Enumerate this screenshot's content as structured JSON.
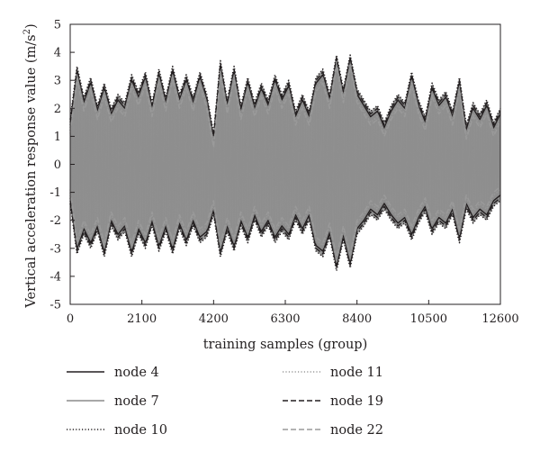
{
  "chart_data": {
    "type": "line",
    "title": "",
    "xlabel": "training samples (group)",
    "ylabel_main": "Vertical acceleration response value (m/s",
    "ylabel_sup": "2",
    "ylabel_close": ")",
    "xlim": [
      0,
      12600
    ],
    "ylim": [
      -5,
      5
    ],
    "x_ticks": [
      0,
      2100,
      4200,
      6300,
      8400,
      10500,
      12600
    ],
    "y_ticks": [
      -5,
      -4,
      -3,
      -2,
      -1,
      0,
      1,
      2,
      3,
      4,
      5
    ],
    "grid": false,
    "legend_position": "bottom, two columns",
    "band_color": "#9a9a9a",
    "envelope_sample_x": [
      0,
      200,
      400,
      600,
      800,
      1000,
      1200,
      1400,
      1600,
      1800,
      2000,
      2200,
      2400,
      2600,
      2800,
      3000,
      3200,
      3400,
      3600,
      3800,
      4000,
      4200,
      4400,
      4600,
      4800,
      5000,
      5200,
      5400,
      5600,
      5800,
      6000,
      6200,
      6400,
      6600,
      6800,
      7000,
      7200,
      7400,
      7600,
      7800,
      8000,
      8200,
      8400,
      8600,
      8800,
      9000,
      9200,
      9400,
      9600,
      9800,
      10000,
      10200,
      10400,
      10600,
      10800,
      11000,
      11200,
      11400,
      11600,
      11800,
      12000,
      12200,
      12400,
      12600
    ],
    "series": [
      {
        "name": "node 4",
        "color": "#231f20",
        "dash": "solid",
        "width": 1.4,
        "upper": [
          1.4,
          3.3,
          2.2,
          2.9,
          1.9,
          2.7,
          1.8,
          2.3,
          2.0,
          3.0,
          2.4,
          3.1,
          2.0,
          3.2,
          2.2,
          3.3,
          2.3,
          3.0,
          2.2,
          3.1,
          2.3,
          0.9,
          3.5,
          2.1,
          3.3,
          1.9,
          2.9,
          2.0,
          2.7,
          2.1,
          3.0,
          2.3,
          2.8,
          1.7,
          2.3,
          1.7,
          2.9,
          3.2,
          2.3,
          3.8,
          2.5,
          3.8,
          2.5,
          2.1,
          1.7,
          1.9,
          1.3,
          1.9,
          2.3,
          2.0,
          3.1,
          2.1,
          1.5,
          2.7,
          2.1,
          2.4,
          1.7,
          2.9,
          1.2,
          2.0,
          1.6,
          2.1,
          1.3,
          1.8
        ],
        "lower": [
          -1.2,
          -3.0,
          -2.3,
          -2.8,
          -2.2,
          -3.1,
          -2.0,
          -2.5,
          -2.2,
          -3.1,
          -2.3,
          -2.8,
          -2.0,
          -2.9,
          -2.2,
          -3.0,
          -2.1,
          -2.7,
          -2.0,
          -2.6,
          -2.4,
          -1.6,
          -3.1,
          -2.2,
          -2.9,
          -2.0,
          -2.6,
          -1.8,
          -2.4,
          -2.0,
          -2.6,
          -2.2,
          -2.5,
          -1.8,
          -2.3,
          -1.8,
          -2.9,
          -3.1,
          -2.4,
          -3.6,
          -2.5,
          -3.5,
          -2.3,
          -2.0,
          -1.6,
          -1.8,
          -1.4,
          -1.8,
          -2.1,
          -1.9,
          -2.5,
          -1.9,
          -1.5,
          -2.3,
          -1.9,
          -2.1,
          -1.6,
          -2.6,
          -1.4,
          -1.9,
          -1.6,
          -1.8,
          -1.3,
          -1.1
        ]
      },
      {
        "name": "node 7",
        "color": "#8c8c8c",
        "dash": "solid",
        "width": 1.4,
        "upper": [
          1.3,
          3.2,
          2.1,
          2.8,
          1.8,
          2.6,
          1.7,
          2.2,
          1.9,
          2.9,
          2.3,
          3.0,
          1.9,
          3.1,
          2.1,
          3.2,
          2.2,
          2.9,
          2.1,
          3.0,
          2.2,
          0.8,
          3.4,
          2.0,
          3.2,
          1.8,
          2.8,
          1.9,
          2.6,
          2.0,
          2.9,
          2.2,
          2.7,
          1.6,
          2.2,
          1.6,
          2.8,
          3.1,
          2.2,
          3.7,
          2.4,
          3.7,
          2.4,
          2.0,
          1.6,
          1.8,
          1.2,
          1.8,
          2.2,
          1.9,
          3.0,
          2.0,
          1.4,
          2.6,
          2.0,
          2.3,
          1.6,
          2.8,
          1.1,
          1.9,
          1.5,
          2.0,
          1.2,
          1.7
        ],
        "lower": [
          -1.1,
          -2.9,
          -2.2,
          -2.7,
          -2.1,
          -3.0,
          -1.9,
          -2.4,
          -2.1,
          -3.0,
          -2.2,
          -2.7,
          -1.9,
          -2.8,
          -2.1,
          -2.9,
          -2.0,
          -2.6,
          -1.9,
          -2.5,
          -2.3,
          -1.5,
          -3.0,
          -2.1,
          -2.8,
          -1.9,
          -2.5,
          -1.7,
          -2.3,
          -1.9,
          -2.5,
          -2.1,
          -2.4,
          -1.7,
          -2.2,
          -1.7,
          -2.8,
          -3.0,
          -2.3,
          -3.5,
          -2.4,
          -3.4,
          -2.2,
          -1.9,
          -1.5,
          -1.7,
          -1.3,
          -1.7,
          -2.0,
          -1.8,
          -2.4,
          -1.8,
          -1.4,
          -2.2,
          -1.8,
          -2.0,
          -1.5,
          -2.5,
          -1.3,
          -1.8,
          -1.5,
          -1.7,
          -1.2,
          -1.0
        ]
      },
      {
        "name": "node 10",
        "color": "#231f20",
        "dash": "dotted",
        "width": 1.6,
        "upper": [
          1.6,
          3.5,
          2.4,
          3.1,
          2.1,
          2.9,
          2.0,
          2.5,
          2.2,
          3.2,
          2.6,
          3.3,
          2.2,
          3.4,
          2.4,
          3.5,
          2.5,
          3.2,
          2.4,
          3.3,
          2.5,
          1.1,
          3.7,
          2.3,
          3.5,
          2.1,
          3.1,
          2.2,
          2.9,
          2.3,
          3.2,
          2.5,
          3.0,
          1.9,
          2.5,
          1.9,
          3.1,
          3.4,
          2.5,
          3.9,
          2.7,
          3.9,
          2.7,
          2.3,
          1.9,
          2.1,
          1.5,
          2.1,
          2.5,
          2.2,
          3.3,
          2.3,
          1.7,
          2.9,
          2.3,
          2.6,
          1.9,
          3.1,
          1.4,
          2.2,
          1.8,
          2.3,
          1.5,
          2.0
        ],
        "lower": [
          -1.4,
          -3.2,
          -2.5,
          -3.0,
          -2.4,
          -3.3,
          -2.2,
          -2.7,
          -2.4,
          -3.3,
          -2.5,
          -3.0,
          -2.2,
          -3.1,
          -2.4,
          -3.2,
          -2.3,
          -2.9,
          -2.2,
          -2.8,
          -2.6,
          -1.8,
          -3.3,
          -2.4,
          -3.1,
          -2.2,
          -2.8,
          -2.0,
          -2.6,
          -2.2,
          -2.8,
          -2.4,
          -2.7,
          -2.0,
          -2.5,
          -2.0,
          -3.1,
          -3.3,
          -2.6,
          -3.8,
          -2.7,
          -3.7,
          -2.5,
          -2.2,
          -1.8,
          -2.0,
          -1.6,
          -2.0,
          -2.3,
          -2.1,
          -2.7,
          -2.1,
          -1.7,
          -2.5,
          -2.1,
          -2.3,
          -1.8,
          -2.8,
          -1.6,
          -2.1,
          -1.8,
          -2.0,
          -1.5,
          -1.3
        ]
      },
      {
        "name": "node 11",
        "color": "#9a9a9a",
        "dash": "dotted",
        "width": 1.6,
        "upper": [
          1.2,
          3.1,
          2.0,
          2.7,
          1.7,
          2.5,
          1.6,
          2.1,
          1.8,
          2.8,
          2.2,
          2.9,
          1.8,
          3.0,
          2.0,
          3.1,
          2.1,
          2.8,
          2.0,
          2.9,
          2.1,
          0.7,
          3.3,
          1.9,
          3.1,
          1.7,
          2.7,
          1.8,
          2.5,
          1.9,
          2.8,
          2.1,
          2.6,
          1.5,
          2.1,
          1.5,
          2.7,
          3.0,
          2.1,
          3.6,
          2.3,
          3.6,
          2.3,
          1.9,
          1.5,
          1.7,
          1.1,
          1.7,
          2.1,
          1.8,
          2.9,
          1.9,
          1.3,
          2.5,
          1.9,
          2.2,
          1.5,
          2.7,
          1.0,
          1.8,
          1.4,
          1.9,
          1.1,
          1.6
        ],
        "lower": [
          -1.0,
          -2.8,
          -2.1,
          -2.6,
          -2.0,
          -2.9,
          -1.8,
          -2.3,
          -2.0,
          -2.9,
          -2.1,
          -2.6,
          -1.8,
          -2.7,
          -2.0,
          -2.8,
          -1.9,
          -2.5,
          -1.8,
          -2.4,
          -2.2,
          -1.4,
          -2.9,
          -2.0,
          -2.7,
          -1.8,
          -2.4,
          -1.6,
          -2.2,
          -1.8,
          -2.4,
          -2.0,
          -2.3,
          -1.6,
          -2.1,
          -1.6,
          -2.7,
          -2.9,
          -2.2,
          -3.4,
          -2.3,
          -3.3,
          -2.1,
          -1.8,
          -1.4,
          -1.6,
          -1.2,
          -1.6,
          -1.9,
          -1.7,
          -2.3,
          -1.7,
          -1.3,
          -2.1,
          -1.7,
          -1.9,
          -1.4,
          -2.4,
          -1.2,
          -1.7,
          -1.4,
          -1.6,
          -1.1,
          -0.9
        ]
      },
      {
        "name": "node 19",
        "color": "#231f20",
        "dash": "dashed",
        "width": 1.4,
        "upper": [
          1.5,
          3.4,
          2.3,
          3.0,
          2.0,
          2.8,
          1.9,
          2.4,
          2.1,
          3.1,
          2.5,
          3.2,
          2.1,
          3.3,
          2.3,
          3.4,
          2.4,
          3.1,
          2.3,
          3.2,
          2.4,
          1.0,
          3.6,
          2.2,
          3.4,
          2.0,
          3.0,
          2.1,
          2.8,
          2.2,
          3.1,
          2.4,
          2.9,
          1.8,
          2.4,
          1.8,
          3.0,
          3.3,
          2.4,
          3.8,
          2.6,
          3.8,
          2.6,
          2.2,
          1.8,
          2.0,
          1.4,
          2.0,
          2.4,
          2.1,
          3.2,
          2.2,
          1.6,
          2.8,
          2.2,
          2.5,
          1.8,
          3.0,
          1.3,
          2.1,
          1.7,
          2.2,
          1.4,
          1.9
        ],
        "lower": [
          -1.3,
          -3.1,
          -2.4,
          -2.9,
          -2.3,
          -3.2,
          -2.1,
          -2.6,
          -2.3,
          -3.2,
          -2.4,
          -2.9,
          -2.1,
          -3.0,
          -2.3,
          -3.1,
          -2.2,
          -2.8,
          -2.1,
          -2.7,
          -2.5,
          -1.7,
          -3.2,
          -2.3,
          -3.0,
          -2.1,
          -2.7,
          -1.9,
          -2.5,
          -2.1,
          -2.7,
          -2.3,
          -2.6,
          -1.9,
          -2.4,
          -1.9,
          -3.0,
          -3.2,
          -2.5,
          -3.7,
          -2.6,
          -3.6,
          -2.4,
          -2.1,
          -1.7,
          -1.9,
          -1.5,
          -1.9,
          -2.2,
          -2.0,
          -2.6,
          -2.0,
          -1.6,
          -2.4,
          -2.0,
          -2.2,
          -1.7,
          -2.7,
          -1.5,
          -2.0,
          -1.7,
          -1.9,
          -1.4,
          -1.2
        ]
      },
      {
        "name": "node 22",
        "color": "#9a9a9a",
        "dash": "dashed",
        "width": 1.4,
        "upper": [
          1.1,
          3.0,
          1.9,
          2.6,
          1.6,
          2.4,
          1.5,
          2.0,
          1.7,
          2.7,
          2.1,
          2.8,
          1.7,
          2.9,
          1.9,
          3.0,
          2.0,
          2.7,
          1.9,
          2.8,
          2.0,
          0.6,
          3.2,
          1.8,
          3.0,
          1.6,
          2.6,
          1.7,
          2.4,
          1.8,
          2.7,
          2.0,
          2.5,
          1.4,
          2.0,
          1.4,
          2.6,
          2.9,
          2.0,
          3.5,
          2.2,
          3.5,
          2.2,
          1.8,
          1.4,
          1.6,
          1.0,
          1.6,
          2.0,
          1.7,
          2.8,
          1.8,
          1.2,
          2.4,
          1.8,
          2.1,
          1.4,
          2.6,
          0.9,
          1.7,
          1.3,
          1.8,
          1.0,
          1.5
        ],
        "lower": [
          -0.9,
          -2.7,
          -2.0,
          -2.5,
          -1.9,
          -2.8,
          -1.7,
          -2.2,
          -1.9,
          -2.8,
          -2.0,
          -2.5,
          -1.7,
          -2.6,
          -1.9,
          -2.7,
          -1.8,
          -2.4,
          -1.7,
          -2.3,
          -2.1,
          -1.3,
          -2.8,
          -1.9,
          -2.6,
          -1.7,
          -2.3,
          -1.5,
          -2.1,
          -1.7,
          -2.3,
          -1.9,
          -2.2,
          -1.5,
          -2.0,
          -1.5,
          -2.6,
          -2.8,
          -2.1,
          -3.3,
          -2.2,
          -3.2,
          -2.0,
          -1.7,
          -1.3,
          -1.5,
          -1.1,
          -1.5,
          -1.8,
          -1.6,
          -2.2,
          -1.6,
          -1.2,
          -2.0,
          -1.6,
          -1.8,
          -1.3,
          -2.3,
          -1.1,
          -1.6,
          -1.3,
          -1.5,
          -1.0,
          -0.8
        ]
      }
    ]
  }
}
